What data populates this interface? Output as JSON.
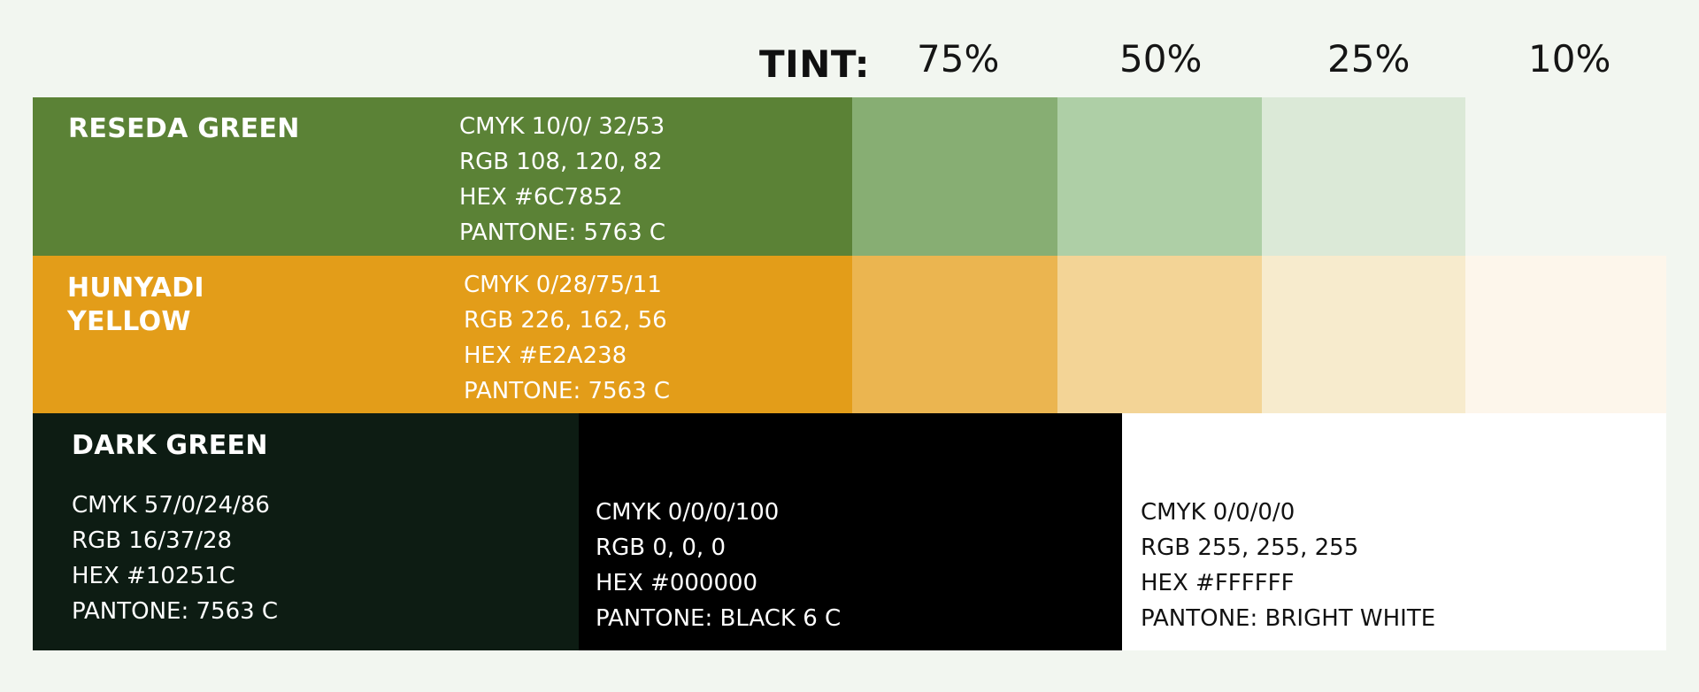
{
  "header": {
    "tint_label": "TINT:",
    "tints": [
      "75%",
      "50%",
      "25%",
      "10%"
    ]
  },
  "colors": {
    "reseda": {
      "name": "RESEDA GREEN",
      "cmyk": "CMYK 10/0/ 32/53",
      "rgb": "RGB 108, 120, 82",
      "hex": "HEX #6C7852",
      "pantone": "PANTONE:  5763 C",
      "swatch": "#5b8236",
      "tint_swatches": [
        "#87ae73",
        "#aecfa6",
        "#dbe9d7"
      ]
    },
    "hunyadi": {
      "name": "HUNYADI\nYELLOW",
      "cmyk": "CMYK 0/28/75/11",
      "rgb": "RGB 226, 162, 56",
      "hex": "HEX #E2A238",
      "pantone": "PANTONE:  7563 C",
      "swatch": "#e39d19",
      "tint_swatches": [
        "#ebb550",
        "#f3d496",
        "#f7ebcd",
        "#fdf6eb"
      ]
    },
    "dark_green": {
      "name": "DARK GREEN",
      "cmyk": "CMYK 57/0/24/86",
      "rgb": "RGB 16/37/28",
      "hex": "HEX #10251C",
      "pantone": "PANTONE:  7563 C",
      "swatch": "#0d1c13"
    },
    "black": {
      "cmyk": "CMYK 0/0/0/100",
      "rgb": "RGB 0, 0, 0",
      "hex": "HEX #000000",
      "pantone": "PANTONE:  BLACK 6 C",
      "swatch": "#000000"
    },
    "white": {
      "cmyk": "CMYK 0/0/0/0",
      "rgb": "RGB 255, 255, 255",
      "hex": "HEX #FFFFFF",
      "pantone": "PANTONE:  BRIGHT WHITE",
      "swatch": "#ffffff"
    }
  }
}
